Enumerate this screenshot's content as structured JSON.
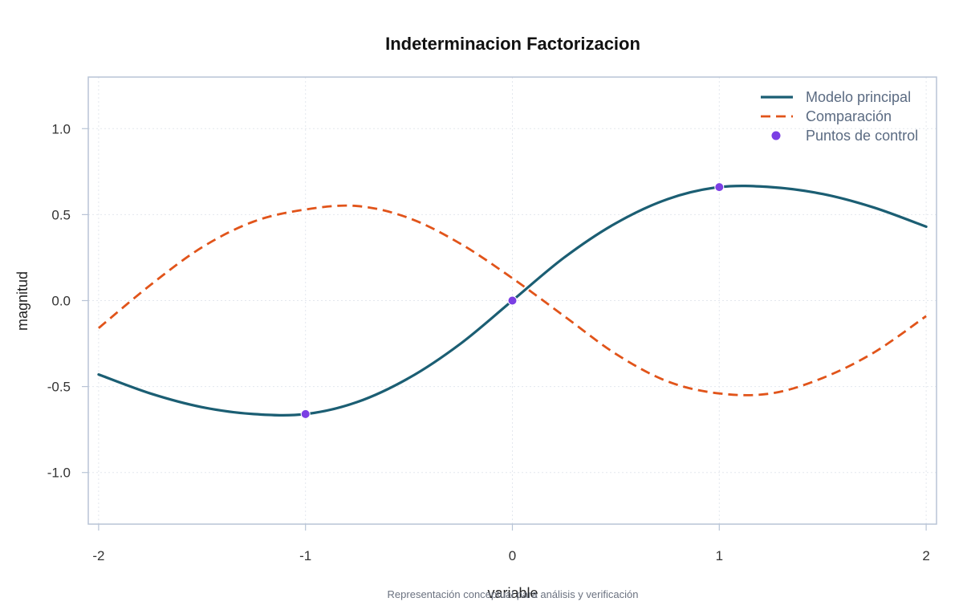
{
  "chart_data": {
    "type": "line",
    "title": "Indeterminacion Factorizacion",
    "xlabel": "variable",
    "ylabel": "magnitud",
    "caption": "Representación conceptual para análisis y verificación",
    "xlim": [
      -2.05,
      2.05
    ],
    "ylim": [
      -1.3,
      1.3
    ],
    "xticks": [
      -2,
      -1,
      0,
      1,
      2
    ],
    "xtick_labels": [
      "-2",
      "-1",
      "0",
      "1",
      "2"
    ],
    "yticks": [
      -1.0,
      -0.5,
      0.0,
      0.5,
      1.0
    ],
    "ytick_labels": [
      "-1.0",
      "-0.5",
      "0.0",
      "0.5",
      "1.0"
    ],
    "grid": true,
    "legend_position": "top-right",
    "series": [
      {
        "name": "Modelo principal",
        "style": "solid",
        "color": "#1b5e73",
        "x": [
          -2.0,
          -1.75,
          -1.5,
          -1.25,
          -1.0,
          -0.75,
          -0.5,
          -0.25,
          0.0,
          0.25,
          0.5,
          0.75,
          1.0,
          1.25,
          1.5,
          1.75,
          2.0
        ],
        "y": [
          -0.43,
          -0.54,
          -0.62,
          -0.66,
          -0.66,
          -0.59,
          -0.45,
          -0.25,
          0.0,
          0.25,
          0.45,
          0.59,
          0.66,
          0.66,
          0.62,
          0.54,
          0.43
        ]
      },
      {
        "name": "Comparación",
        "style": "dashed",
        "color": "#e1541a",
        "x": [
          -2.0,
          -1.75,
          -1.5,
          -1.25,
          -1.0,
          -0.75,
          -0.5,
          -0.25,
          0.0,
          0.25,
          0.5,
          0.75,
          1.0,
          1.25,
          1.5,
          1.75,
          2.0
        ],
        "y": [
          -0.16,
          0.09,
          0.31,
          0.46,
          0.53,
          0.55,
          0.48,
          0.33,
          0.13,
          -0.09,
          -0.31,
          -0.47,
          -0.54,
          -0.54,
          -0.45,
          -0.3,
          -0.09
        ]
      },
      {
        "name": "Puntos de control",
        "style": "points",
        "color": "#7b3fe4",
        "x": [
          -1,
          0,
          1
        ],
        "y": [
          -0.66,
          0.0,
          0.66
        ]
      }
    ]
  }
}
